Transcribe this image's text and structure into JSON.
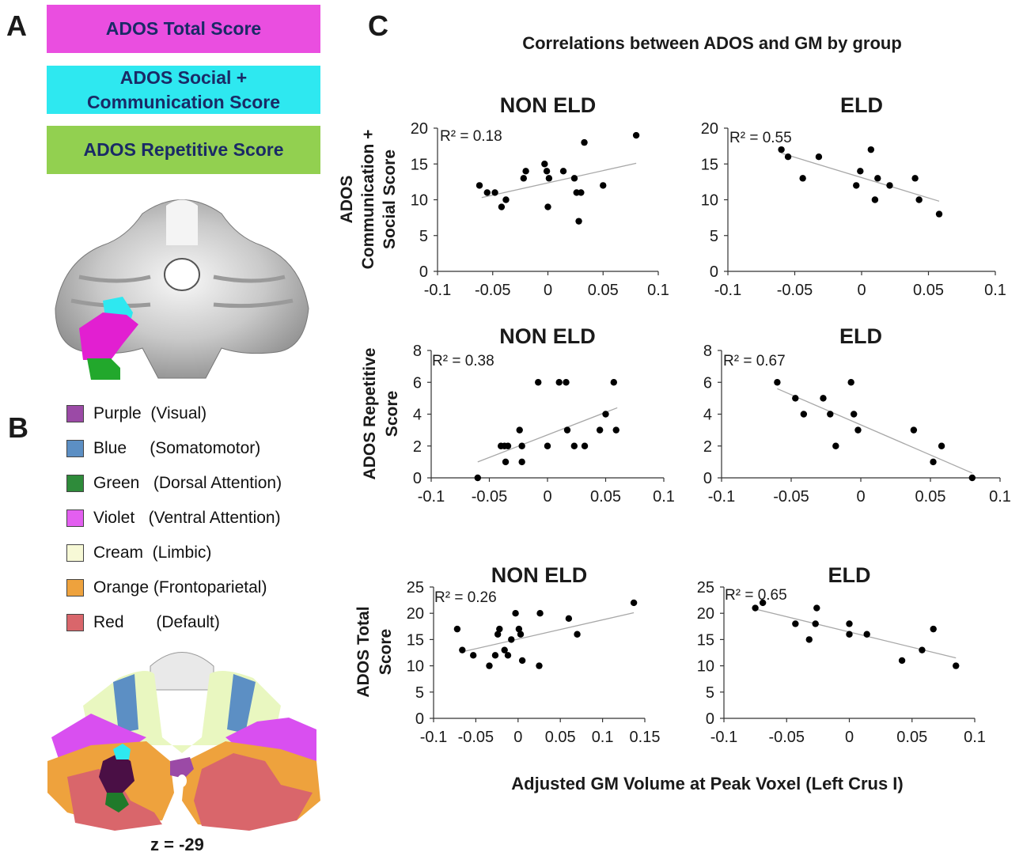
{
  "panel_labels": {
    "a": "A",
    "b": "B",
    "c": "C"
  },
  "score_boxes": [
    {
      "label": "ADOS Total Score",
      "color": "#ea4ee0"
    },
    {
      "label": "ADOS Social +\nCommunication  Score",
      "color": "#2ee8f0"
    },
    {
      "label": "ADOS Repetitive Score",
      "color": "#92d050"
    }
  ],
  "network_legend": [
    {
      "label": "Purple  (Visual)",
      "color": "#9b4aa6"
    },
    {
      "label": "Blue     (Somatomotor)",
      "color": "#5c8fc4"
    },
    {
      "label": "Green   (Dorsal Attention)",
      "color": "#2e8b3a"
    },
    {
      "label": "Violet   (Ventral Attention)",
      "color": "#e35ff0"
    },
    {
      "label": "Cream  (Limbic)",
      "color": "#f7f9d6"
    },
    {
      "label": "Orange (Frontoparietal)",
      "color": "#eea23d"
    },
    {
      "label": "Red       (Default)",
      "color": "#d9666b"
    }
  ],
  "slice_label": "z = -29",
  "figure_title": "Correlations between ADOS and GM by group",
  "shared_xlabel": "Adjusted GM Volume at Peak Voxel (Left Crus I)",
  "row_ylabels": [
    [
      "ADOS",
      "Communication +",
      "Social Score"
    ],
    [
      "ADOS Repetitive",
      "Score"
    ],
    [
      "ADOS Total",
      "Score"
    ]
  ],
  "chart_data": [
    {
      "type": "scatter",
      "title": "NON ELD",
      "r2_label": "R² = 0.18",
      "xlim": [
        -0.1,
        0.1
      ],
      "xticks": [
        -0.1,
        -0.05,
        0,
        0.05,
        0.1
      ],
      "xtick_labels": [
        "-0.1",
        "-0.05",
        "0",
        "0.05",
        "0.1"
      ],
      "ylim": [
        0,
        20
      ],
      "yticks": [
        0,
        5,
        10,
        15,
        20
      ],
      "points": [
        [
          -0.062,
          12
        ],
        [
          -0.055,
          11
        ],
        [
          -0.048,
          11
        ],
        [
          -0.042,
          9
        ],
        [
          -0.038,
          10
        ],
        [
          -0.022,
          13
        ],
        [
          -0.02,
          14
        ],
        [
          -0.003,
          15
        ],
        [
          -0.001,
          14
        ],
        [
          0.001,
          13
        ],
        [
          0.0,
          9
        ],
        [
          0.014,
          14
        ],
        [
          0.024,
          13
        ],
        [
          0.026,
          11
        ],
        [
          0.03,
          11
        ],
        [
          0.028,
          7
        ],
        [
          0.033,
          18
        ],
        [
          0.05,
          12
        ],
        [
          0.08,
          19
        ]
      ],
      "trend": [
        [
          -0.06,
          10.3
        ],
        [
          0.08,
          15.1
        ]
      ]
    },
    {
      "type": "scatter",
      "title": "ELD",
      "r2_label": "R² = 0.55",
      "xlim": [
        -0.1,
        0.1
      ],
      "xticks": [
        -0.1,
        -0.05,
        0,
        0.05,
        0.1
      ],
      "xtick_labels": [
        "-0.1",
        "-0.05",
        "0",
        "0.05",
        "0.1"
      ],
      "ylim": [
        0,
        20
      ],
      "yticks": [
        0,
        5,
        10,
        15,
        20
      ],
      "points": [
        [
          -0.06,
          17
        ],
        [
          -0.055,
          16
        ],
        [
          -0.044,
          13
        ],
        [
          -0.032,
          16
        ],
        [
          -0.004,
          12
        ],
        [
          -0.001,
          14
        ],
        [
          0.007,
          17
        ],
        [
          0.01,
          10
        ],
        [
          0.012,
          13
        ],
        [
          0.021,
          12
        ],
        [
          0.04,
          13
        ],
        [
          0.043,
          10
        ],
        [
          0.058,
          8
        ]
      ],
      "trend": [
        [
          -0.06,
          16.5
        ],
        [
          0.058,
          9.8
        ]
      ]
    },
    {
      "type": "scatter",
      "title": "NON ELD",
      "r2_label": "R² = 0.38",
      "xlim": [
        -0.1,
        0.1
      ],
      "xticks": [
        -0.1,
        -0.05,
        0,
        0.05,
        0.1
      ],
      "xtick_labels": [
        "-0.1",
        "-0.05",
        "0",
        "0.05",
        "0.1"
      ],
      "ylim": [
        0,
        8
      ],
      "yticks": [
        0,
        2,
        4,
        6,
        8
      ],
      "points": [
        [
          -0.06,
          0
        ],
        [
          -0.04,
          2
        ],
        [
          -0.037,
          2
        ],
        [
          -0.034,
          2
        ],
        [
          -0.036,
          1
        ],
        [
          -0.024,
          3
        ],
        [
          -0.022,
          2
        ],
        [
          -0.022,
          1
        ],
        [
          -0.008,
          6
        ],
        [
          0.0,
          2
        ],
        [
          0.01,
          6
        ],
        [
          0.016,
          6
        ],
        [
          0.017,
          3
        ],
        [
          0.023,
          2
        ],
        [
          0.032,
          2
        ],
        [
          0.045,
          3
        ],
        [
          0.05,
          4
        ],
        [
          0.057,
          6
        ],
        [
          0.059,
          3
        ]
      ],
      "trend": [
        [
          -0.06,
          1.0
        ],
        [
          0.06,
          4.4
        ]
      ]
    },
    {
      "type": "scatter",
      "title": "ELD",
      "r2_label": "R² = 0.67",
      "xlim": [
        -0.1,
        0.1
      ],
      "xticks": [
        -0.1,
        -0.05,
        0,
        0.05,
        0.1
      ],
      "xtick_labels": [
        "-0.1",
        "-0.05",
        "0",
        "0.05",
        "0.1"
      ],
      "ylim": [
        0,
        8
      ],
      "yticks": [
        0,
        2,
        4,
        6,
        8
      ],
      "points": [
        [
          -0.06,
          6
        ],
        [
          -0.047,
          5
        ],
        [
          -0.041,
          4
        ],
        [
          -0.027,
          5
        ],
        [
          -0.022,
          4
        ],
        [
          -0.018,
          2
        ],
        [
          -0.007,
          6
        ],
        [
          -0.005,
          4
        ],
        [
          -0.002,
          3
        ],
        [
          0.038,
          3
        ],
        [
          0.052,
          1
        ],
        [
          0.058,
          2
        ],
        [
          0.08,
          0
        ]
      ],
      "trend": [
        [
          -0.06,
          5.6
        ],
        [
          0.08,
          0.3
        ]
      ]
    },
    {
      "type": "scatter",
      "title": "NON ELD",
      "r2_label": "R² = 0.26",
      "xlim": [
        -0.1,
        0.15
      ],
      "xticks": [
        -0.1,
        -0.05,
        0,
        0.05,
        0.1,
        0.15
      ],
      "xtick_labels": [
        "-0.1",
        "-0.05",
        "0",
        "0.05",
        "0.1",
        "0.15"
      ],
      "ylim": [
        0,
        25
      ],
      "yticks": [
        0,
        5,
        10,
        15,
        20,
        25
      ],
      "points": [
        [
          -0.072,
          17
        ],
        [
          -0.066,
          13
        ],
        [
          -0.053,
          12
        ],
        [
          -0.034,
          10
        ],
        [
          -0.024,
          16
        ],
        [
          -0.022,
          17
        ],
        [
          -0.027,
          12
        ],
        [
          -0.016,
          13
        ],
        [
          -0.012,
          12
        ],
        [
          -0.008,
          15
        ],
        [
          -0.003,
          20
        ],
        [
          0.001,
          17
        ],
        [
          0.005,
          11
        ],
        [
          0.003,
          16
        ],
        [
          0.025,
          10
        ],
        [
          0.026,
          20
        ],
        [
          0.06,
          19
        ],
        [
          0.07,
          16
        ],
        [
          0.137,
          22
        ]
      ],
      "trend": [
        [
          -0.065,
          12.7
        ],
        [
          0.137,
          20.1
        ]
      ]
    },
    {
      "type": "scatter",
      "title": "ELD",
      "r2_label": "R² = 0.65",
      "xlim": [
        -0.1,
        0.1
      ],
      "xticks": [
        -0.1,
        -0.05,
        0,
        0.05,
        0.1
      ],
      "xtick_labels": [
        "-0.1",
        "-0.05",
        "0",
        "0.05",
        "0.1"
      ],
      "ylim": [
        0,
        25
      ],
      "yticks": [
        0,
        5,
        10,
        15,
        20,
        25
      ],
      "points": [
        [
          -0.075,
          21
        ],
        [
          -0.069,
          22
        ],
        [
          -0.043,
          18
        ],
        [
          -0.032,
          15
        ],
        [
          -0.026,
          21
        ],
        [
          -0.027,
          18
        ],
        [
          0.0,
          18
        ],
        [
          0.0,
          16
        ],
        [
          0.014,
          16
        ],
        [
          0.042,
          11
        ],
        [
          0.058,
          13
        ],
        [
          0.067,
          17
        ],
        [
          0.085,
          10
        ]
      ],
      "trend": [
        [
          -0.075,
          20.8
        ],
        [
          0.085,
          11.5
        ]
      ]
    }
  ]
}
